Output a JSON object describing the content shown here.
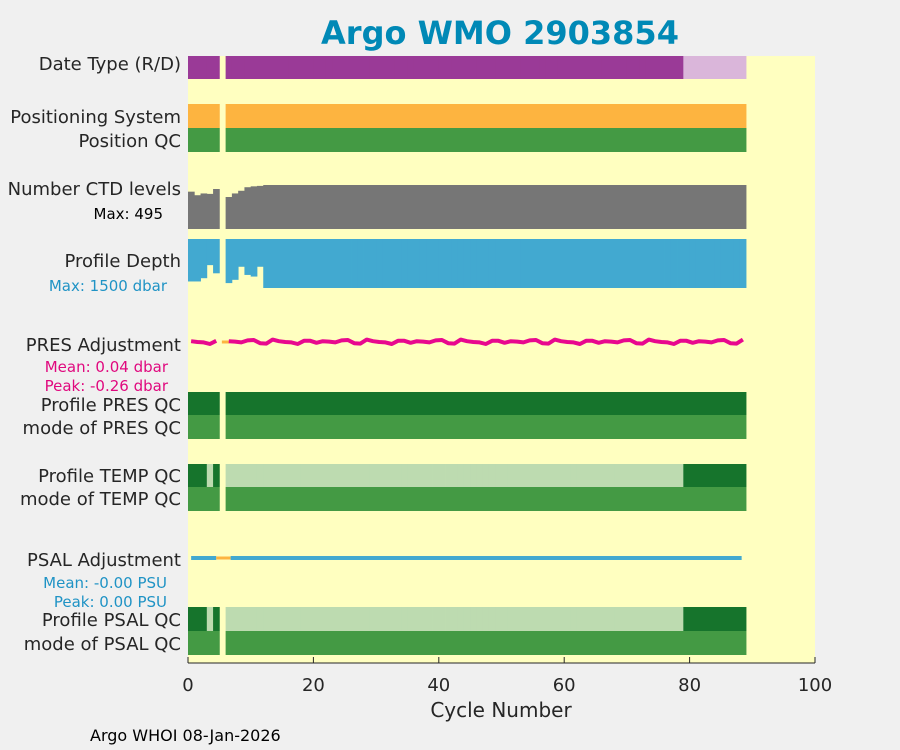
{
  "chart_data": {
    "type": "bar",
    "title": "Argo WMO 2903854",
    "xlabel": "Cycle Number",
    "xlim": [
      0,
      100
    ],
    "x_ticks": [
      "0",
      "20",
      "40",
      "60",
      "80",
      "100"
    ],
    "footer": "Argo WHOI 08-Jan-2026",
    "rows": [
      {
        "id": "date-type",
        "label": "Date Type (R/D)"
      },
      {
        "id": "positioning-system",
        "label": "Positioning System"
      },
      {
        "id": "position-qc",
        "label": "Position QC"
      },
      {
        "id": "number-ctd-levels",
        "label": "Number CTD levels",
        "note": "Max: 495"
      },
      {
        "id": "profile-depth",
        "label": "Profile Depth",
        "note": "Max: 1500 dbar"
      },
      {
        "id": "pres-adjustment",
        "label": "PRES Adjustment",
        "note1": "Mean: 0.04 dbar",
        "note2": "Peak: -0.26 dbar"
      },
      {
        "id": "profile-pres-qc",
        "label": "Profile PRES QC"
      },
      {
        "id": "mode-pres-qc",
        "label": "mode of PRES QC"
      },
      {
        "id": "profile-temp-qc",
        "label": "Profile TEMP QC"
      },
      {
        "id": "mode-temp-qc",
        "label": "mode of TEMP QC"
      },
      {
        "id": "psal-adjustment",
        "label": "PSAL Adjustment",
        "note1": "Mean: -0.00 PSU",
        "note2": "Peak: 0.00 PSU"
      },
      {
        "id": "profile-psal-qc",
        "label": "Profile PSAL QC"
      },
      {
        "id": "mode-psal-qc",
        "label": "mode of PSAL QC"
      }
    ],
    "cycles": {
      "first": 0,
      "last": 88,
      "missing": [
        5
      ]
    },
    "date_type_segments": [
      {
        "from": 0,
        "to": 78,
        "color": "#9a3a97"
      },
      {
        "from": 79,
        "to": 88,
        "color": "#dab6da"
      }
    ],
    "temp_qc_light_cycles": [
      3,
      6,
      7
    ],
    "temp_qc_light_range": [
      8,
      78
    ],
    "psal_qc_light_cycles": [
      3,
      6,
      7
    ],
    "psal_qc_light_range": [
      8,
      78
    ],
    "ctd_levels": [
      420,
      380,
      400,
      395,
      450,
      null,
      360,
      400,
      430,
      470,
      480,
      485,
      495,
      495,
      495
    ],
    "ctd_levels_rest": 495,
    "ctd_levels_max": 495,
    "profile_depth": [
      1300,
      1300,
      1200,
      800,
      1050,
      null,
      1350,
      1250,
      850,
      1100,
      1150,
      850,
      1500
    ],
    "profile_depth_rest": 1500,
    "profile_depth_max": 1500,
    "pres_adjustment_pattern": [
      0.02,
      -0.01,
      0.03,
      -0.02,
      0.01,
      0.04,
      -0.03,
      0.06,
      0.0,
      -0.05,
      0.03,
      0.02,
      -0.01,
      0.05,
      -0.04
    ],
    "pres_adjustment_peak": -0.26,
    "colors": {
      "plot_bg": "#ffffc0",
      "figure_bg": "#f0f0f0",
      "title": "#0089b6",
      "orange": "#fdb440",
      "qc_mid_green": "#449a44",
      "qc_dark_green": "#16742c",
      "qc_light_green": "#bddbb0",
      "gray": "#767676",
      "blue": "#42a9d0",
      "magenta": "#e8088e",
      "note_magenta": "#e0087e",
      "note_blue": "#1f93c5",
      "text": "#262626"
    }
  }
}
